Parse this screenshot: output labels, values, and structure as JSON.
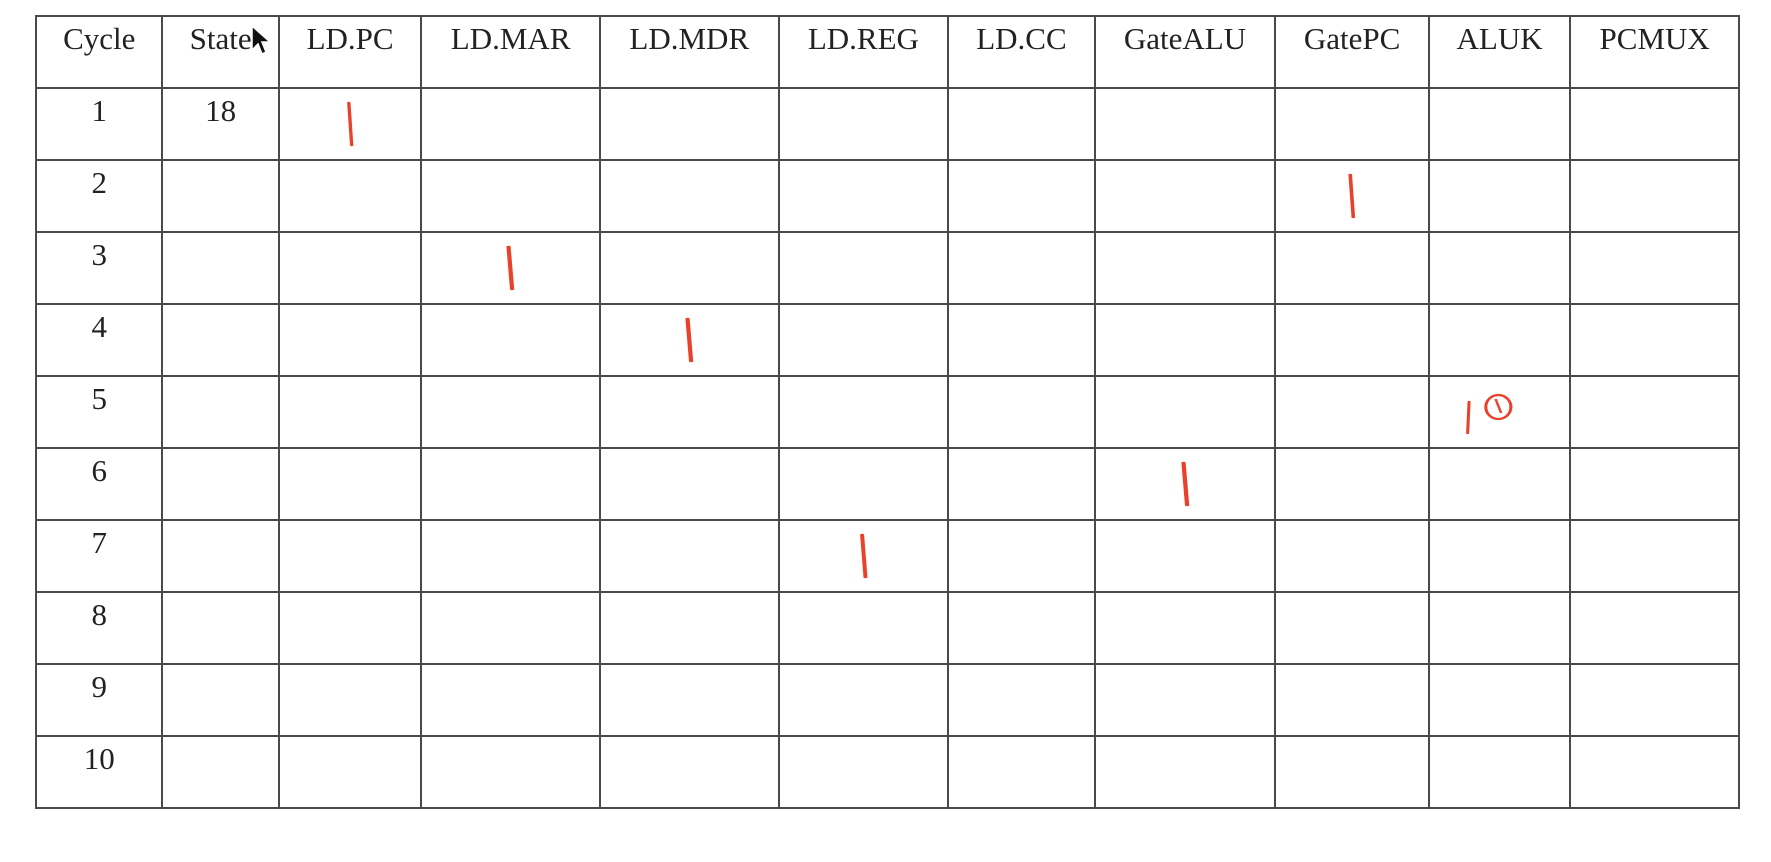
{
  "table": {
    "headers": [
      "Cycle",
      "State",
      "LD.PC",
      "LD.MAR",
      "LD.MDR",
      "LD.REG",
      "LD.CC",
      "GateALU",
      "GatePC",
      "ALUK",
      "PCMUX"
    ],
    "rows": [
      {
        "cycle": "1",
        "state": "18"
      },
      {
        "cycle": "2",
        "state": ""
      },
      {
        "cycle": "3",
        "state": ""
      },
      {
        "cycle": "4",
        "state": ""
      },
      {
        "cycle": "5",
        "state": ""
      },
      {
        "cycle": "6",
        "state": ""
      },
      {
        "cycle": "7",
        "state": ""
      },
      {
        "cycle": "8",
        "state": ""
      },
      {
        "cycle": "9",
        "state": ""
      },
      {
        "cycle": "10",
        "state": ""
      }
    ]
  },
  "handwritten_marks": [
    {
      "row": 0,
      "column": "LD.PC",
      "value": "1"
    },
    {
      "row": 1,
      "column": "GatePC",
      "value": "1"
    },
    {
      "row": 2,
      "column": "LD.MAR",
      "value": "1"
    },
    {
      "row": 3,
      "column": "LD.MDR",
      "value": "1"
    },
    {
      "row": 4,
      "column": "ALUK",
      "value": "10"
    },
    {
      "row": 5,
      "column": "GateALU",
      "value": "1"
    },
    {
      "row": 6,
      "column": "LD.REG",
      "value": "1"
    }
  ],
  "colors": {
    "ink": "#e8432a",
    "grid_line": "#4a4a4a",
    "text": "#222222"
  },
  "icons": {
    "cursor": "mouse-pointer-icon"
  }
}
